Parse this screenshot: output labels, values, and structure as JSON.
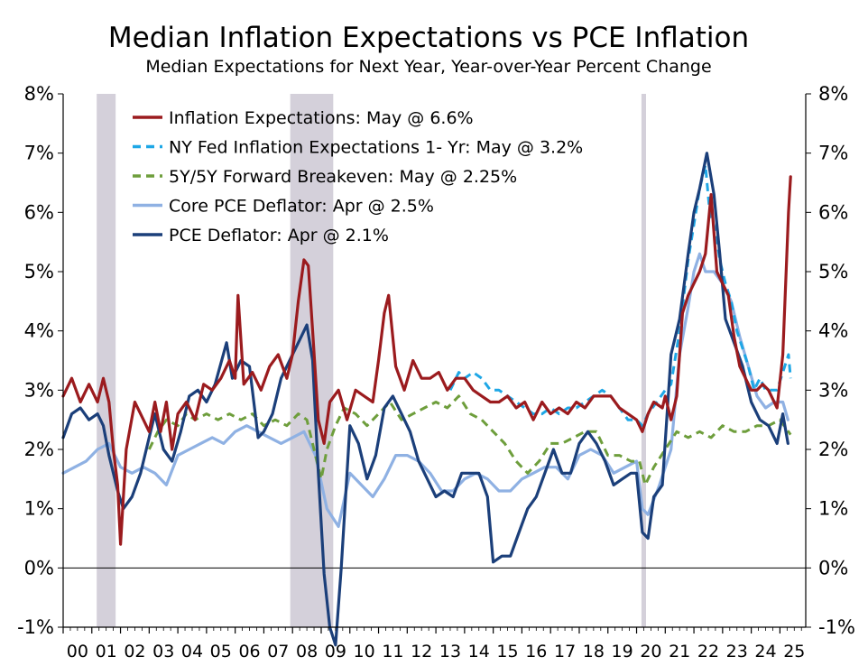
{
  "colors": {
    "inflation_expectations": "#9b1b1e",
    "ny_fed": "#1ea7e6",
    "breakeven": "#6e9e3c",
    "core_pce": "#8fb1e3",
    "pce": "#1b3f7a",
    "recession": "#d4d0da"
  },
  "chart_data": {
    "type": "line",
    "title": "Median Inflation Expectations vs PCE Inflation",
    "subtitle": "Median Expectations for Next Year, Year-over-Year Percent Change",
    "xlabel": "",
    "ylabel": "",
    "xlim": [
      2000.0,
      2025.9
    ],
    "ylim": [
      -1,
      8
    ],
    "y_ticks": [
      "8%",
      "7%",
      "6%",
      "5%",
      "4%",
      "3%",
      "2%",
      "1%",
      "0%",
      "-1%"
    ],
    "y_tick_values": [
      8,
      7,
      6,
      5,
      4,
      3,
      2,
      1,
      0,
      -1
    ],
    "x_ticks": [
      "00",
      "01",
      "02",
      "03",
      "04",
      "05",
      "06",
      "07",
      "08",
      "09",
      "10",
      "11",
      "12",
      "13",
      "14",
      "15",
      "16",
      "17",
      "18",
      "19",
      "20",
      "21",
      "22",
      "23",
      "24",
      "25"
    ],
    "grid": false,
    "legend_position": "top-left",
    "recessions": [
      [
        2001.17,
        2001.83
      ],
      [
        2007.92,
        2009.42
      ],
      [
        2020.17,
        2020.33
      ]
    ],
    "series": [
      {
        "name": "Inflation Expectations: May @ 6.6%",
        "style": "solid",
        "x": [
          2000.0,
          2000.3,
          2000.6,
          2000.9,
          2001.2,
          2001.4,
          2001.6,
          2001.75,
          2001.9,
          2002.0,
          2002.2,
          2002.5,
          2002.8,
          2003.0,
          2003.2,
          2003.4,
          2003.6,
          2003.8,
          2004.0,
          2004.3,
          2004.6,
          2004.9,
          2005.2,
          2005.5,
          2005.8,
          2006.0,
          2006.1,
          2006.3,
          2006.6,
          2006.9,
          2007.2,
          2007.5,
          2007.8,
          2008.0,
          2008.2,
          2008.4,
          2008.55,
          2008.7,
          2008.9,
          2009.1,
          2009.3,
          2009.6,
          2009.9,
          2010.2,
          2010.5,
          2010.8,
          2011.0,
          2011.2,
          2011.35,
          2011.6,
          2011.9,
          2012.2,
          2012.5,
          2012.8,
          2013.1,
          2013.4,
          2013.7,
          2014.0,
          2014.3,
          2014.6,
          2014.9,
          2015.2,
          2015.5,
          2015.8,
          2016.1,
          2016.4,
          2016.7,
          2017.0,
          2017.3,
          2017.6,
          2017.9,
          2018.2,
          2018.5,
          2018.8,
          2019.1,
          2019.4,
          2019.7,
          2020.0,
          2020.2,
          2020.4,
          2020.6,
          2020.9,
          2021.0,
          2021.2,
          2021.4,
          2021.6,
          2021.8,
          2022.0,
          2022.2,
          2022.4,
          2022.6,
          2022.8,
          2023.0,
          2023.2,
          2023.4,
          2023.6,
          2023.8,
          2024.0,
          2024.2,
          2024.4,
          2024.6,
          2024.9,
          2025.1,
          2025.3,
          2025.37
        ],
        "y": [
          2.9,
          3.2,
          2.8,
          3.1,
          2.8,
          3.2,
          2.8,
          2.0,
          1.4,
          0.4,
          2.0,
          2.8,
          2.5,
          2.3,
          2.8,
          2.3,
          2.8,
          2.0,
          2.6,
          2.8,
          2.5,
          3.1,
          3.0,
          3.2,
          3.5,
          3.2,
          4.6,
          3.1,
          3.3,
          3.0,
          3.4,
          3.6,
          3.2,
          3.6,
          4.5,
          5.2,
          5.1,
          4.0,
          2.5,
          2.1,
          2.8,
          3.0,
          2.5,
          3.0,
          2.9,
          2.8,
          3.5,
          4.3,
          4.6,
          3.4,
          3.0,
          3.5,
          3.2,
          3.2,
          3.3,
          3.0,
          3.2,
          3.2,
          3.0,
          2.9,
          2.8,
          2.8,
          2.9,
          2.7,
          2.8,
          2.5,
          2.8,
          2.6,
          2.7,
          2.6,
          2.8,
          2.7,
          2.9,
          2.9,
          2.9,
          2.7,
          2.6,
          2.5,
          2.3,
          2.6,
          2.8,
          2.7,
          2.9,
          2.5,
          2.9,
          4.3,
          4.6,
          4.8,
          5.0,
          5.3,
          6.3,
          5.0,
          4.8,
          4.6,
          3.9,
          3.4,
          3.2,
          3.0,
          3.0,
          3.1,
          3.0,
          2.7,
          3.6,
          6.0,
          6.6
        ]
      },
      {
        "name": "NY Fed  Inflation Expectations 1- Yr: May @ 3.2%",
        "style": "dashed",
        "x": [
          2013.5,
          2013.8,
          2014.0,
          2014.3,
          2014.6,
          2014.9,
          2015.2,
          2015.5,
          2015.8,
          2016.1,
          2016.4,
          2016.7,
          2017.0,
          2017.3,
          2017.6,
          2017.9,
          2018.2,
          2018.5,
          2018.8,
          2019.1,
          2019.4,
          2019.7,
          2020.0,
          2020.2,
          2020.4,
          2020.7,
          2021.0,
          2021.2,
          2021.5,
          2021.8,
          2022.0,
          2022.2,
          2022.4,
          2022.55,
          2022.75,
          2022.9,
          2023.1,
          2023.3,
          2023.5,
          2023.7,
          2023.9,
          2024.1,
          2024.3,
          2024.5,
          2024.7,
          2024.9,
          2025.1,
          2025.3,
          2025.37
        ],
        "y": [
          3.0,
          3.3,
          3.2,
          3.3,
          3.2,
          3.0,
          3.0,
          2.9,
          2.8,
          2.7,
          2.6,
          2.6,
          2.7,
          2.6,
          2.7,
          2.7,
          2.8,
          2.9,
          3.0,
          2.9,
          2.7,
          2.5,
          2.5,
          2.4,
          2.6,
          2.8,
          3.0,
          3.1,
          4.0,
          5.2,
          5.8,
          6.4,
          6.8,
          6.0,
          5.7,
          5.2,
          4.8,
          4.5,
          4.0,
          3.7,
          3.4,
          3.0,
          3.2,
          3.0,
          3.0,
          3.0,
          3.3,
          3.6,
          3.2
        ]
      },
      {
        "name": "5Y/5Y Forward Breakeven: May @ 2.25%",
        "style": "dashed",
        "x": [
          2003.0,
          2003.3,
          2003.6,
          2004.0,
          2004.3,
          2004.6,
          2005.0,
          2005.4,
          2005.8,
          2006.2,
          2006.6,
          2007.0,
          2007.4,
          2007.8,
          2008.2,
          2008.5,
          2008.8,
          2009.0,
          2009.2,
          2009.5,
          2009.8,
          2010.2,
          2010.6,
          2011.0,
          2011.4,
          2011.8,
          2012.2,
          2012.6,
          2013.0,
          2013.4,
          2013.8,
          2014.2,
          2014.6,
          2015.0,
          2015.4,
          2015.8,
          2016.2,
          2016.6,
          2017.0,
          2017.4,
          2017.8,
          2018.2,
          2018.6,
          2019.0,
          2019.4,
          2019.8,
          2020.1,
          2020.3,
          2020.6,
          2021.0,
          2021.4,
          2021.8,
          2022.2,
          2022.6,
          2023.0,
          2023.4,
          2023.8,
          2024.2,
          2024.6,
          2025.0,
          2025.37
        ],
        "y": [
          2.0,
          2.3,
          2.5,
          2.4,
          2.6,
          2.5,
          2.6,
          2.5,
          2.6,
          2.5,
          2.6,
          2.4,
          2.5,
          2.4,
          2.6,
          2.5,
          1.9,
          1.5,
          2.0,
          2.4,
          2.7,
          2.6,
          2.4,
          2.6,
          2.8,
          2.5,
          2.6,
          2.7,
          2.8,
          2.7,
          2.9,
          2.6,
          2.5,
          2.3,
          2.1,
          1.8,
          1.6,
          1.8,
          2.1,
          2.1,
          2.2,
          2.3,
          2.3,
          1.9,
          1.9,
          1.8,
          1.8,
          1.4,
          1.7,
          2.0,
          2.3,
          2.2,
          2.3,
          2.2,
          2.4,
          2.3,
          2.3,
          2.4,
          2.4,
          2.5,
          2.25
        ]
      },
      {
        "name": "Core PCE Deflator: Apr @ 2.5%",
        "style": "solid",
        "x": [
          2000.0,
          2000.4,
          2000.8,
          2001.2,
          2001.6,
          2002.0,
          2002.4,
          2002.8,
          2003.2,
          2003.6,
          2004.0,
          2004.4,
          2004.8,
          2005.2,
          2005.6,
          2006.0,
          2006.4,
          2006.8,
          2007.2,
          2007.6,
          2008.0,
          2008.4,
          2008.8,
          2009.2,
          2009.6,
          2010.0,
          2010.4,
          2010.8,
          2011.2,
          2011.6,
          2012.0,
          2012.4,
          2012.8,
          2013.2,
          2013.6,
          2014.0,
          2014.4,
          2014.8,
          2015.2,
          2015.6,
          2016.0,
          2016.4,
          2016.8,
          2017.2,
          2017.6,
          2018.0,
          2018.4,
          2018.8,
          2019.2,
          2019.6,
          2020.0,
          2020.2,
          2020.4,
          2020.8,
          2021.2,
          2021.5,
          2021.8,
          2022.0,
          2022.2,
          2022.4,
          2022.7,
          2023.0,
          2023.3,
          2023.6,
          2023.9,
          2024.2,
          2024.5,
          2024.8,
          2025.1,
          2025.28
        ],
        "y": [
          1.6,
          1.7,
          1.8,
          2.0,
          2.1,
          1.7,
          1.6,
          1.7,
          1.6,
          1.4,
          1.9,
          2.0,
          2.1,
          2.2,
          2.1,
          2.3,
          2.4,
          2.3,
          2.2,
          2.1,
          2.2,
          2.3,
          1.9,
          1.0,
          0.7,
          1.6,
          1.4,
          1.2,
          1.5,
          1.9,
          1.9,
          1.8,
          1.6,
          1.3,
          1.3,
          1.5,
          1.6,
          1.5,
          1.3,
          1.3,
          1.5,
          1.6,
          1.7,
          1.7,
          1.5,
          1.9,
          2.0,
          1.9,
          1.6,
          1.7,
          1.8,
          1.0,
          0.9,
          1.4,
          2.0,
          3.6,
          4.4,
          5.0,
          5.3,
          5.0,
          5.0,
          4.8,
          4.5,
          3.9,
          3.4,
          2.9,
          2.7,
          2.8,
          2.8,
          2.5
        ]
      },
      {
        "name": "PCE Deflator: Apr @ 2.1%",
        "style": "solid",
        "x": [
          2000.0,
          2000.3,
          2000.6,
          2000.9,
          2001.2,
          2001.4,
          2001.6,
          2001.9,
          2002.1,
          2002.4,
          2002.7,
          2003.0,
          2003.2,
          2003.5,
          2003.8,
          2004.1,
          2004.4,
          2004.7,
          2005.0,
          2005.3,
          2005.7,
          2005.9,
          2006.2,
          2006.5,
          2006.8,
          2007.0,
          2007.3,
          2007.6,
          2007.9,
          2008.2,
          2008.5,
          2008.7,
          2008.9,
          2009.1,
          2009.3,
          2009.5,
          2009.7,
          2010.0,
          2010.3,
          2010.6,
          2010.9,
          2011.2,
          2011.5,
          2011.8,
          2012.1,
          2012.4,
          2012.7,
          2013.0,
          2013.3,
          2013.6,
          2013.9,
          2014.2,
          2014.5,
          2014.8,
          2015.0,
          2015.3,
          2015.6,
          2015.9,
          2016.2,
          2016.5,
          2016.8,
          2017.1,
          2017.4,
          2017.7,
          2018.0,
          2018.3,
          2018.6,
          2018.9,
          2019.2,
          2019.5,
          2019.8,
          2020.0,
          2020.2,
          2020.4,
          2020.6,
          2020.9,
          2021.2,
          2021.5,
          2021.8,
          2022.0,
          2022.2,
          2022.45,
          2022.7,
          2022.9,
          2023.1,
          2023.4,
          2023.7,
          2024.0,
          2024.3,
          2024.6,
          2024.9,
          2025.1,
          2025.28
        ],
        "y": [
          2.2,
          2.6,
          2.7,
          2.5,
          2.6,
          2.4,
          1.9,
          1.3,
          1.0,
          1.2,
          1.6,
          2.2,
          2.6,
          2.0,
          1.8,
          2.3,
          2.9,
          3.0,
          2.8,
          3.1,
          3.8,
          3.2,
          3.5,
          3.4,
          2.2,
          2.3,
          2.6,
          3.2,
          3.5,
          3.8,
          4.1,
          3.5,
          1.6,
          -0.1,
          -1.0,
          -1.3,
          0.0,
          2.4,
          2.1,
          1.5,
          1.9,
          2.7,
          2.9,
          2.6,
          2.3,
          1.8,
          1.5,
          1.2,
          1.3,
          1.2,
          1.6,
          1.6,
          1.6,
          1.2,
          0.1,
          0.2,
          0.2,
          0.6,
          1.0,
          1.2,
          1.6,
          2.0,
          1.6,
          1.6,
          2.1,
          2.3,
          2.1,
          1.8,
          1.4,
          1.5,
          1.6,
          1.6,
          0.6,
          0.5,
          1.2,
          1.4,
          3.6,
          4.2,
          5.3,
          6.0,
          6.4,
          7.0,
          6.3,
          5.3,
          4.2,
          3.8,
          3.4,
          2.8,
          2.5,
          2.4,
          2.1,
          2.6,
          2.1
        ]
      }
    ]
  }
}
